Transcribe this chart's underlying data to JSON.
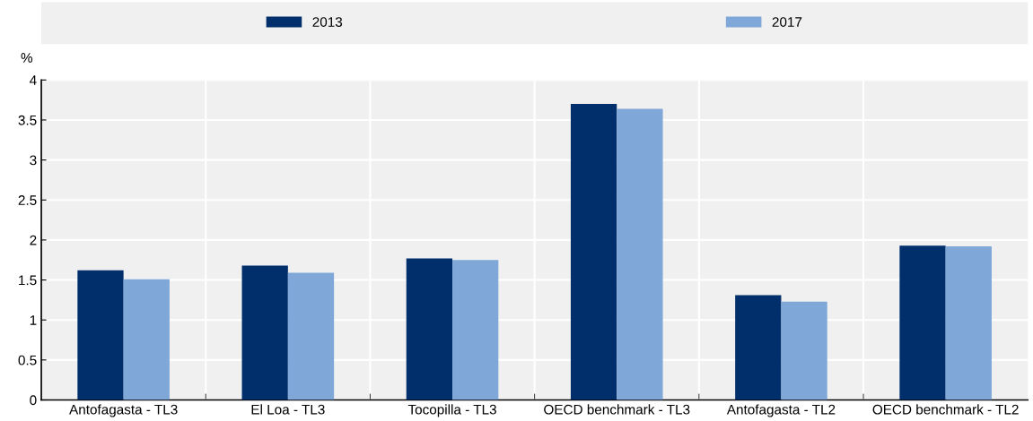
{
  "chart_data": {
    "type": "bar",
    "ylabel": "%",
    "categories": [
      "Antofagasta - TL3",
      "El Loa - TL3",
      "Tocopilla - TL3",
      "OECD benchmark - TL3",
      "Antofagasta - TL2",
      "OECD benchmark - TL2"
    ],
    "series": [
      {
        "name": "2013",
        "color": "#002f6c",
        "values": [
          1.62,
          1.68,
          1.77,
          3.7,
          1.31,
          1.93
        ]
      },
      {
        "name": "2017",
        "color": "#7fa8d9",
        "values": [
          1.51,
          1.59,
          1.75,
          3.64,
          1.23,
          1.92
        ]
      }
    ],
    "ylim": [
      0,
      4
    ],
    "yticks": [
      0,
      0.5,
      1,
      1.5,
      2,
      2.5,
      3,
      3.5,
      4
    ],
    "grid": true,
    "legend": "top"
  }
}
